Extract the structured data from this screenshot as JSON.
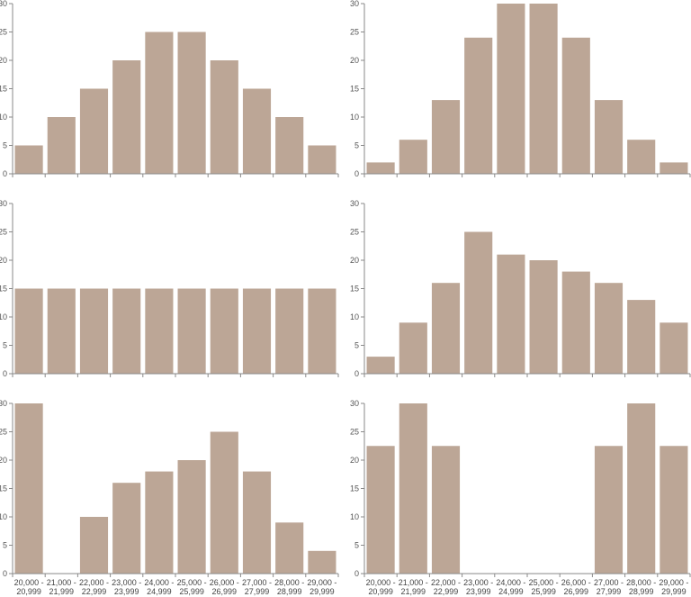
{
  "chart_data": [
    {
      "type": "bar",
      "categories": [
        "20,000 - 20,999",
        "21,000 - 21,999",
        "22,000 - 22,999",
        "23,000 - 23,999",
        "24,000 - 24,999",
        "25,000 - 25,999",
        "26,000 - 26,999",
        "27,000 - 27,999",
        "28,000 - 28,999",
        "29,000 - 29,999"
      ],
      "values": [
        5,
        10,
        15,
        20,
        25,
        25,
        20,
        15,
        10,
        5
      ],
      "ylim": [
        0,
        30
      ],
      "yticks": [
        0,
        5,
        10,
        15,
        20,
        25,
        30
      ],
      "show_category_labels": false,
      "bar_color": "#bca696",
      "grid": false
    },
    {
      "type": "bar",
      "categories": [
        "20,000 - 20,999",
        "21,000 - 21,999",
        "22,000 - 22,999",
        "23,000 - 23,999",
        "24,000 - 24,999",
        "25,000 - 25,999",
        "26,000 - 26,999",
        "27,000 - 27,999",
        "28,000 - 28,999",
        "29,000 - 29,999"
      ],
      "values": [
        2,
        6,
        13,
        24,
        30,
        30,
        24,
        13,
        6,
        2
      ],
      "ylim": [
        0,
        30
      ],
      "yticks": [
        0,
        5,
        10,
        15,
        20,
        25,
        30
      ],
      "show_category_labels": false,
      "bar_color": "#bca696",
      "grid": false
    },
    {
      "type": "bar",
      "categories": [
        "20,000 - 20,999",
        "21,000 - 21,999",
        "22,000 - 22,999",
        "23,000 - 23,999",
        "24,000 - 24,999",
        "25,000 - 25,999",
        "26,000 - 26,999",
        "27,000 - 27,999",
        "28,000 - 28,999",
        "29,000 - 29,999"
      ],
      "values": [
        15,
        15,
        15,
        15,
        15,
        15,
        15,
        15,
        15,
        15
      ],
      "ylim": [
        0,
        30
      ],
      "yticks": [
        0,
        5,
        10,
        15,
        20,
        25,
        30
      ],
      "show_category_labels": false,
      "bar_color": "#bca696",
      "grid": false
    },
    {
      "type": "bar",
      "categories": [
        "20,000 - 20,999",
        "21,000 - 21,999",
        "22,000 - 22,999",
        "23,000 - 23,999",
        "24,000 - 24,999",
        "25,000 - 25,999",
        "26,000 - 26,999",
        "27,000 - 27,999",
        "28,000 - 28,999",
        "29,000 - 29,999"
      ],
      "values": [
        3,
        9,
        16,
        25,
        21,
        20,
        18,
        16,
        13,
        9
      ],
      "ylim": [
        0,
        30
      ],
      "yticks": [
        0,
        5,
        10,
        15,
        20,
        25,
        30
      ],
      "show_category_labels": false,
      "bar_color": "#bca696",
      "grid": false
    },
    {
      "type": "bar",
      "categories": [
        "20,000 - 20,999",
        "21,000 - 21,999",
        "22,000 - 22,999",
        "23,000 - 23,999",
        "24,000 - 24,999",
        "25,000 - 25,999",
        "26,000 - 26,999",
        "27,000 - 27,999",
        "28,000 - 28,999",
        "29,000 - 29,999"
      ],
      "values": [
        30,
        0,
        10,
        16,
        18,
        20,
        25,
        18,
        9,
        4
      ],
      "ylim": [
        0,
        30
      ],
      "yticks": [
        0,
        5,
        10,
        15,
        20,
        25,
        30
      ],
      "show_category_labels": true,
      "bar_color": "#bca696",
      "grid": false
    },
    {
      "type": "bar",
      "categories": [
        "20,000 - 20,999",
        "21,000 - 21,999",
        "22,000 - 22,999",
        "23,000 - 23,999",
        "24,000 - 24,999",
        "25,000 - 25,999",
        "26,000 - 26,999",
        "27,000 - 27,999",
        "28,000 - 28,999",
        "29,000 - 29,999"
      ],
      "values": [
        22.5,
        30,
        22.5,
        0,
        0,
        0,
        0,
        22.5,
        30,
        22.5
      ],
      "ylim": [
        0,
        30
      ],
      "yticks": [
        0,
        5,
        10,
        15,
        20,
        25,
        30
      ],
      "show_category_labels": true,
      "bar_color": "#bca696",
      "grid": false
    }
  ]
}
